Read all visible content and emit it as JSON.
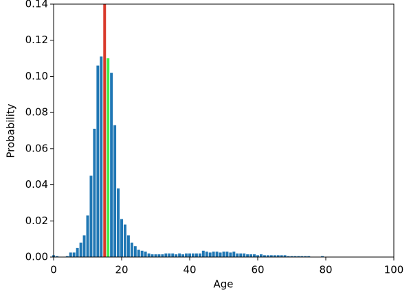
{
  "chart_data": {
    "type": "bar",
    "x_label": "Age",
    "y_label": "Probability",
    "x": [
      0,
      1,
      2,
      3,
      4,
      5,
      6,
      7,
      8,
      9,
      10,
      11,
      12,
      13,
      14,
      15,
      16,
      17,
      18,
      19,
      20,
      21,
      22,
      23,
      24,
      25,
      26,
      27,
      28,
      29,
      30,
      31,
      32,
      33,
      34,
      35,
      36,
      37,
      38,
      39,
      40,
      41,
      42,
      43,
      44,
      45,
      46,
      47,
      48,
      49,
      50,
      51,
      52,
      53,
      54,
      55,
      56,
      57,
      58,
      59,
      60,
      61,
      62,
      63,
      64,
      65,
      66,
      67,
      68,
      69,
      70,
      71,
      72,
      73,
      74,
      75,
      76,
      77,
      78,
      79
    ],
    "values": [
      0.001,
      0.0005,
      0,
      0,
      0.0005,
      0.0025,
      0.0025,
      0.005,
      0.008,
      0.012,
      0.023,
      0.045,
      0.071,
      0.106,
      0.111,
      0.14,
      0.11,
      0.102,
      0.073,
      0.038,
      0.021,
      0.018,
      0.012,
      0.008,
      0.006,
      0.004,
      0.0035,
      0.003,
      0.002,
      0.0015,
      0.0015,
      0.0015,
      0.0015,
      0.002,
      0.002,
      0.002,
      0.0015,
      0.002,
      0.0015,
      0.002,
      0.002,
      0.002,
      0.002,
      0.002,
      0.0035,
      0.003,
      0.0025,
      0.003,
      0.003,
      0.0025,
      0.003,
      0.003,
      0.0025,
      0.003,
      0.002,
      0.002,
      0.002,
      0.0015,
      0.0015,
      0.0015,
      0.001,
      0.0015,
      0.001,
      0.001,
      0.001,
      0.001,
      0.001,
      0.001,
      0.001,
      0.0005,
      0.0005,
      0.0005,
      0.0005,
      0.0005,
      0.0005,
      0.0005,
      0,
      0,
      0,
      0.0005
    ],
    "colors": [
      "#1f77b4",
      "#1f77b4",
      "#1f77b4",
      "#1f77b4",
      "#1f77b4",
      "#1f77b4",
      "#1f77b4",
      "#1f77b4",
      "#1f77b4",
      "#1f77b4",
      "#1f77b4",
      "#1f77b4",
      "#1f77b4",
      "#1f77b4",
      "#1f77b4",
      "#d93a2b",
      "#3cf04a",
      "#1f77b4",
      "#1f77b4",
      "#1f77b4",
      "#1f77b4",
      "#1f77b4",
      "#1f77b4",
      "#1f77b4",
      "#1f77b4",
      "#1f77b4",
      "#1f77b4",
      "#1f77b4",
      "#1f77b4",
      "#1f77b4",
      "#1f77b4",
      "#1f77b4",
      "#1f77b4",
      "#1f77b4",
      "#1f77b4",
      "#1f77b4",
      "#1f77b4",
      "#1f77b4",
      "#1f77b4",
      "#1f77b4",
      "#1f77b4",
      "#1f77b4",
      "#1f77b4",
      "#1f77b4",
      "#1f77b4",
      "#1f77b4",
      "#1f77b4",
      "#1f77b4",
      "#1f77b4",
      "#1f77b4",
      "#1f77b4",
      "#1f77b4",
      "#1f77b4",
      "#1f77b4",
      "#1f77b4",
      "#1f77b4",
      "#1f77b4",
      "#1f77b4",
      "#1f77b4",
      "#1f77b4",
      "#1f77b4",
      "#1f77b4",
      "#1f77b4",
      "#1f77b4",
      "#1f77b4",
      "#1f77b4",
      "#1f77b4",
      "#1f77b4",
      "#1f77b4",
      "#1f77b4",
      "#1f77b4",
      "#1f77b4",
      "#1f77b4",
      "#1f77b4",
      "#1f77b4",
      "#1f77b4",
      "#1f77b4",
      "#1f77b4",
      "#1f77b4",
      "#1f77b4"
    ],
    "xlim": [
      0,
      100
    ],
    "xticks": [
      0,
      20,
      40,
      60,
      80,
      100
    ],
    "ylim": [
      0,
      0.14
    ],
    "yticks": [
      {
        "value": 0,
        "label": "0.00"
      },
      {
        "value": 0.02,
        "label": "0.02"
      },
      {
        "value": 0.04,
        "label": "0.04"
      },
      {
        "value": 0.06,
        "label": "0.06"
      },
      {
        "value": 0.08,
        "label": "0.08"
      },
      {
        "value": 0.1,
        "label": "0.10"
      },
      {
        "value": 0.12,
        "label": "0.12"
      },
      {
        "value": 0.14,
        "label": "0.14"
      }
    ]
  }
}
